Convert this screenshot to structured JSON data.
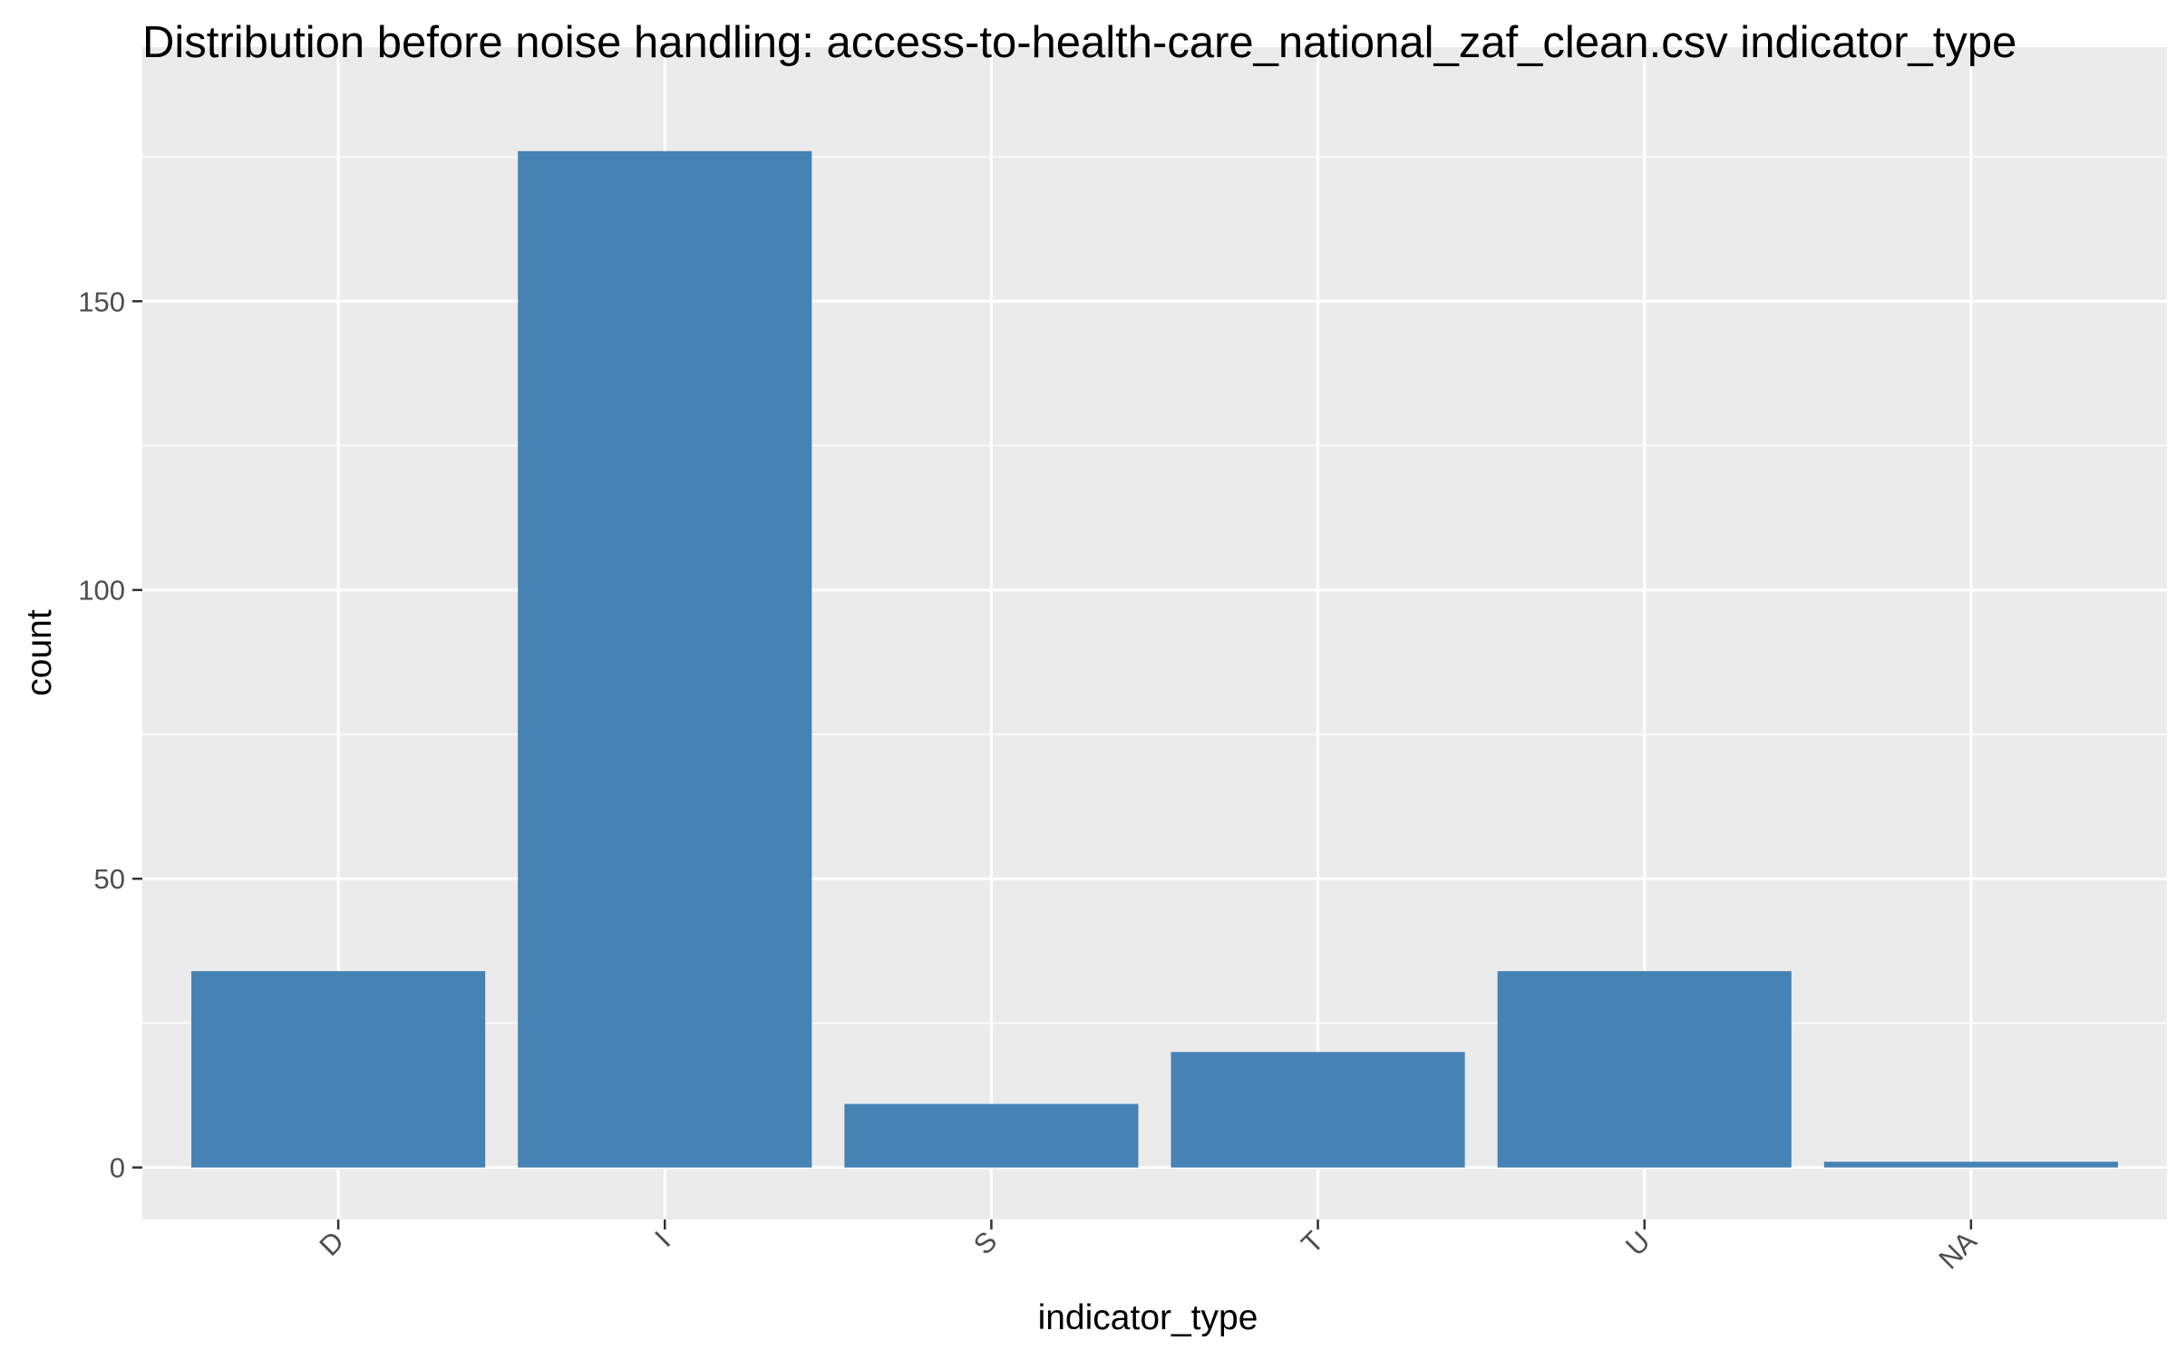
{
  "chart_data": {
    "type": "bar",
    "title": "Distribution before noise handling: access-to-health-care_national_zaf_clean.csv indicator_type",
    "xlabel": "indicator_type",
    "ylabel": "count",
    "categories": [
      "D",
      "I",
      "S",
      "T",
      "U",
      "NA"
    ],
    "values": [
      34,
      176,
      11,
      20,
      34,
      1
    ],
    "ylim": [
      -9,
      194
    ],
    "yticks": [
      0,
      50,
      100,
      150
    ],
    "grid": true,
    "legend": "none",
    "colors": {
      "bar": "#4682b4",
      "panel_background": "#ebebeb",
      "gridline": "#ffffff",
      "tick": "#333333"
    }
  }
}
